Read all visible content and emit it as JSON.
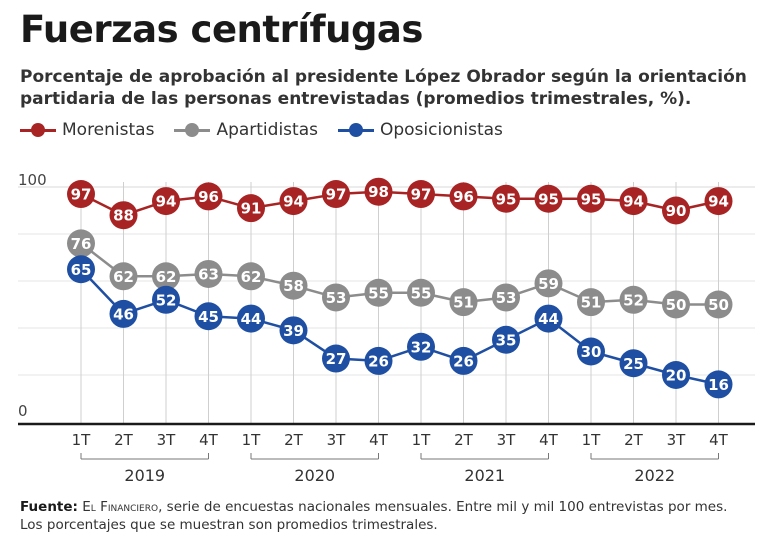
{
  "title": "Fuerzas centrífugas",
  "subtitle": "Porcentaje de aprobación al presidente López Obrador según la orientación partidaria de las personas entrevistadas (promedios trimestrales, %).",
  "footer": {
    "label": "Fuente:",
    "source": "El Financiero",
    "text1": ", serie de encuestas nacionales mensuales. Entre mil y mil 100 entrevistas por mes.",
    "text2": "Los porcentajes que se muestran son promedios trimestrales."
  },
  "chart_data": {
    "type": "line",
    "title": "Fuerzas centrífugas",
    "categories": [
      "1T",
      "2T",
      "3T",
      "4T",
      "1T",
      "2T",
      "3T",
      "4T",
      "1T",
      "2T",
      "3T",
      "4T",
      "1T",
      "2T",
      "3T",
      "4T"
    ],
    "years": [
      "2019",
      "2020",
      "2021",
      "2022"
    ],
    "ylim": [
      0,
      100
    ],
    "ytick_labels": [
      "0",
      "100"
    ],
    "grid": "vertical",
    "legend_position": "top-left",
    "series": [
      {
        "name": "Morenistas",
        "color": "#a82424",
        "values": [
          97,
          88,
          94,
          96,
          91,
          94,
          97,
          98,
          97,
          96,
          95,
          95,
          95,
          94,
          90,
          94
        ]
      },
      {
        "name": "Apartidistas",
        "color": "#8c8c8c",
        "values": [
          76,
          62,
          62,
          63,
          62,
          58,
          53,
          55,
          55,
          51,
          53,
          59,
          51,
          52,
          50,
          50
        ]
      },
      {
        "name": "Oposicionistas",
        "color": "#1f4fa3",
        "values": [
          65,
          46,
          52,
          45,
          44,
          39,
          27,
          26,
          32,
          26,
          35,
          44,
          30,
          25,
          20,
          16
        ]
      }
    ]
  }
}
